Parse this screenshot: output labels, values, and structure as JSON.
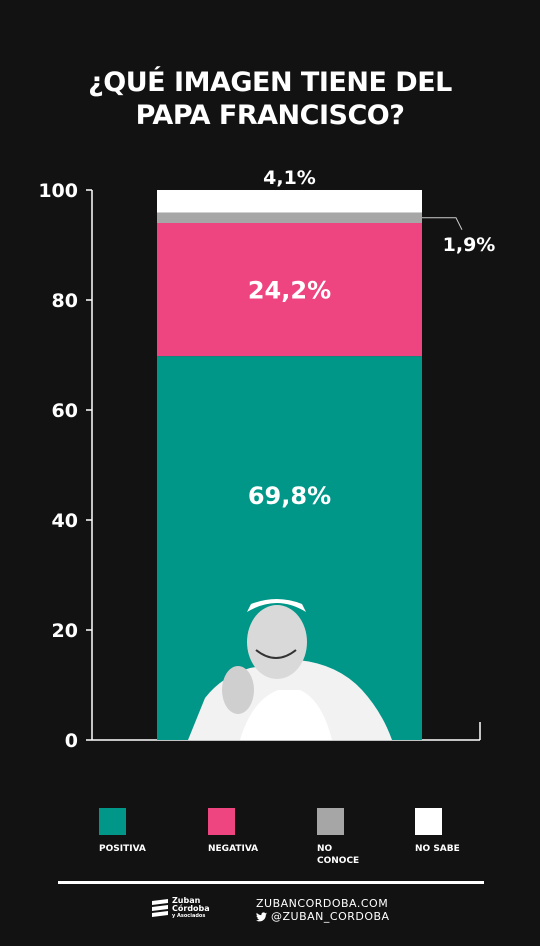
{
  "title_lines": [
    "¿QUÉ IMAGEN TIENE DEL",
    "PAPA FRANCISCO?"
  ],
  "chart_data": {
    "type": "bar",
    "stacked": true,
    "categories": [
      ""
    ],
    "series": [
      {
        "name": "POSITIVA",
        "values": [
          69.8
        ],
        "label": "69,8%",
        "color": "#009688"
      },
      {
        "name": "NEGATIVA",
        "values": [
          24.2
        ],
        "label": "24,2%",
        "color": "#ee4580"
      },
      {
        "name": "NO CONOCE",
        "values": [
          1.9
        ],
        "label": "1,9%",
        "color": "#a6a6a6"
      },
      {
        "name": "NO SABE",
        "values": [
          4.1
        ],
        "label": "4,1%",
        "color": "#ffffff"
      }
    ],
    "y_ticks": [
      0,
      20,
      40,
      60,
      80,
      100
    ],
    "ylim": [
      0,
      100
    ],
    "grid": false,
    "legend_position": "bottom"
  },
  "legend": [
    {
      "label": "POSITIVA",
      "color": "#009688"
    },
    {
      "label": "NEGATIVA",
      "color": "#ee4580"
    },
    {
      "label": "NO CONOCE",
      "color": "#a6a6a6"
    },
    {
      "label": "NO SABE",
      "color": "#ffffff"
    }
  ],
  "footer": {
    "logo_text": "Zuban Córdoba",
    "logo_subtext": "y Asociados",
    "website": "ZUBANCORDOBA.COM",
    "twitter": "@ZUBAN_CORDOBA"
  },
  "icons": {
    "twitter": "twitter-icon",
    "logo": "zuban-logo-icon",
    "portrait": "pope-portrait"
  }
}
